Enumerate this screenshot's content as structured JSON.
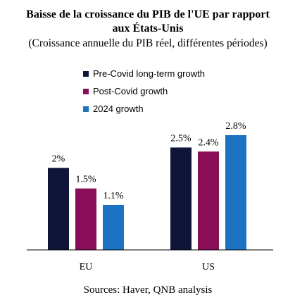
{
  "chart_data": {
    "type": "bar",
    "title_lines": [
      "Baisse de la croissance du PIB de l'UE par rapport",
      "aux États-Unis"
    ],
    "subtitle": "(Croissance annuelle du PIB réel, différentes périodes)",
    "categories": [
      "EU",
      "US"
    ],
    "series": [
      {
        "name": "Pre-Covid long-term growth",
        "color": "#0f1538",
        "values": [
          2.0,
          2.5
        ],
        "labels": [
          "2%",
          "2.5%"
        ]
      },
      {
        "name": "Post-Covid growth",
        "color": "#8a0d57",
        "values": [
          1.5,
          2.4
        ],
        "labels": [
          "1.5%",
          "2.4%"
        ]
      },
      {
        "name": "2024 growth",
        "color": "#1c73c2",
        "values": [
          1.1,
          2.8
        ],
        "labels": [
          "1.1%",
          "2.8%"
        ]
      }
    ],
    "ylim": [
      0,
      3.35
    ],
    "grid": false,
    "legend_position": "top-left",
    "source": "Sources: Haver, QNB analysis"
  }
}
